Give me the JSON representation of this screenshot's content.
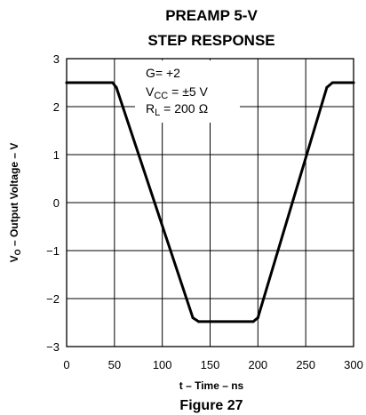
{
  "chart_data": {
    "type": "line",
    "title_line1": "PREAMP 5-V",
    "title_line2": "STEP RESPONSE",
    "xlabel": "t – Time – ns",
    "ylabel_main": "V",
    "ylabel_sub": "O",
    "ylabel_rest": " – Output Voltage – V",
    "figure_label": "Figure 27",
    "xlim": [
      0,
      300
    ],
    "ylim": [
      -3,
      3
    ],
    "x_ticks": [
      "0",
      "50",
      "100",
      "150",
      "200",
      "250",
      "300"
    ],
    "y_ticks": [
      "3",
      "2",
      "1",
      "0",
      "−1",
      "−2",
      "−3"
    ],
    "grid": true,
    "annotation": {
      "gain": "G= +2",
      "vcc_main": "V",
      "vcc_sub": "CC",
      "vcc_rest": " = ±5 V",
      "rl_main": "R",
      "rl_sub": "L",
      "rl_rest": " = 200 Ω"
    },
    "series": [
      {
        "color": "#000000",
        "x": [
          0,
          48,
          52,
          132,
          138,
          195,
          200,
          272,
          278,
          300
        ],
        "y": [
          2.5,
          2.5,
          2.4,
          -2.4,
          -2.48,
          -2.48,
          -2.4,
          2.4,
          2.5,
          2.5
        ]
      }
    ]
  }
}
